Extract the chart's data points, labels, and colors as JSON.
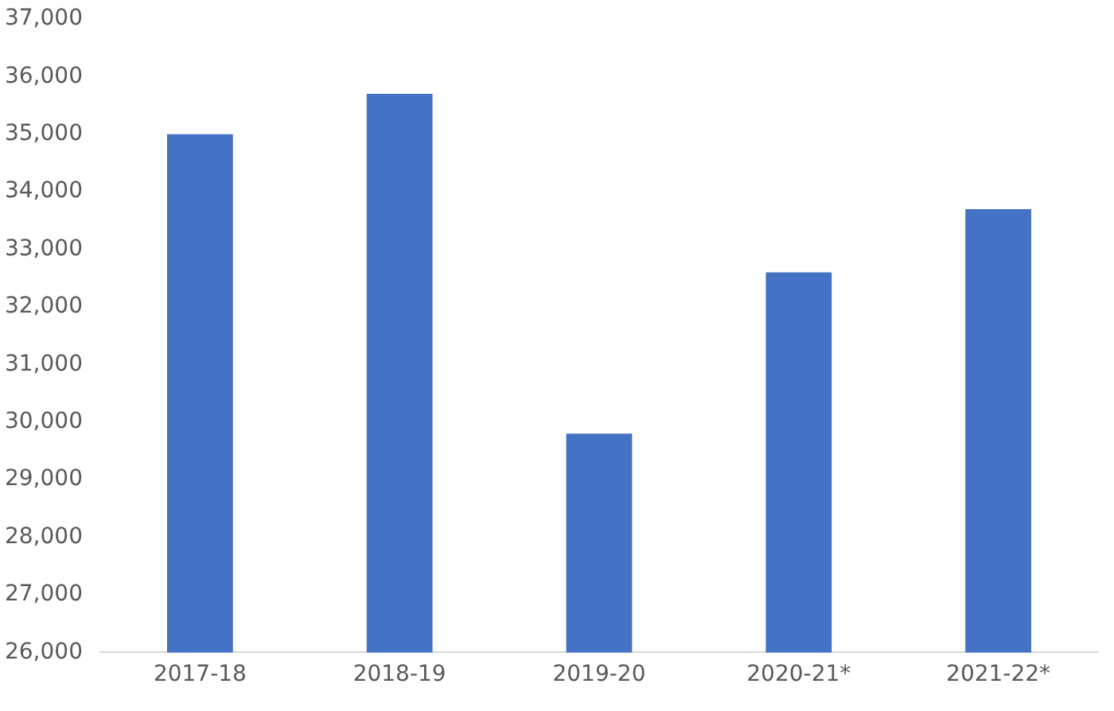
{
  "chart_data": {
    "type": "bar",
    "categories": [
      "2017-18",
      "2018-19",
      "2019-20",
      "2020-21*",
      "2021-22*"
    ],
    "values": [
      35000,
      35700,
      29800,
      32600,
      33700
    ],
    "color": "#4472c4",
    "ylim": [
      26000,
      37000
    ],
    "yticks": [
      {
        "value": 26000,
        "label": "26,000"
      },
      {
        "value": 27000,
        "label": "27,000"
      },
      {
        "value": 28000,
        "label": "28,000"
      },
      {
        "value": 29000,
        "label": "29,000"
      },
      {
        "value": 30000,
        "label": "30,000"
      },
      {
        "value": 31000,
        "label": "31,000"
      },
      {
        "value": 32000,
        "label": "32,000"
      },
      {
        "value": 33000,
        "label": "33,000"
      },
      {
        "value": 34000,
        "label": "34,000"
      },
      {
        "value": 35000,
        "label": "35,000"
      },
      {
        "value": 36000,
        "label": "36,000"
      },
      {
        "value": 37000,
        "label": "37,000"
      }
    ],
    "grid": false,
    "legend": false
  }
}
